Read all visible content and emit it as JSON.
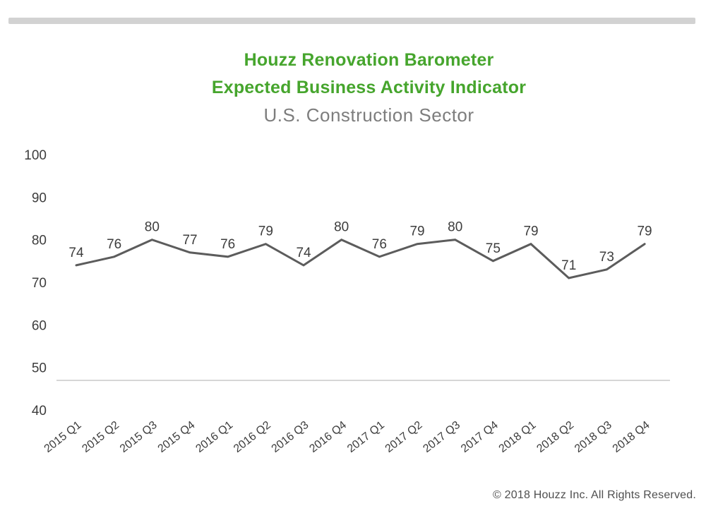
{
  "page": {
    "title_line1": "Houzz Renovation Barometer",
    "title_line2": "Expected Business Activity Indicator",
    "subtitle": "U.S. Construction Sector",
    "copyright": "© 2018 Houzz Inc. All Rights Reserved."
  },
  "colors": {
    "title_green": "#46a52d",
    "subtitle_gray": "#7d7d7d",
    "top_bar_gray": "#d2d2d2",
    "line_gray": "#5c5c5c",
    "label_dark": "#3d3d3d",
    "baseline_gray": "#c9c9c9",
    "copyright_gray": "#4f4f4f"
  },
  "chart_data": {
    "type": "line",
    "title": "Houzz Renovation Barometer",
    "subtitle_1": "Expected Business Activity Indicator",
    "subtitle_2": "U.S. Construction Sector",
    "categories": [
      "2015 Q1",
      "2015 Q2",
      "2015 Q3",
      "2015 Q4",
      "2016 Q1",
      "2016 Q2",
      "2016 Q3",
      "2016 Q4",
      "2017 Q1",
      "2017 Q2",
      "2017 Q3",
      "2017 Q4",
      "2018 Q1",
      "2018 Q2",
      "2018 Q3",
      "2018 Q4"
    ],
    "values": [
      74,
      76,
      80,
      77,
      76,
      79,
      74,
      80,
      76,
      79,
      80,
      75,
      79,
      71,
      73,
      79
    ],
    "xlabel": "",
    "ylabel": "",
    "ylim": [
      40,
      100
    ],
    "yticks": [
      100,
      90,
      80,
      70,
      60,
      50,
      40
    ],
    "grid": false,
    "legend": false,
    "markers": false,
    "data_labels": true,
    "x_label_rotation_deg": -38
  }
}
